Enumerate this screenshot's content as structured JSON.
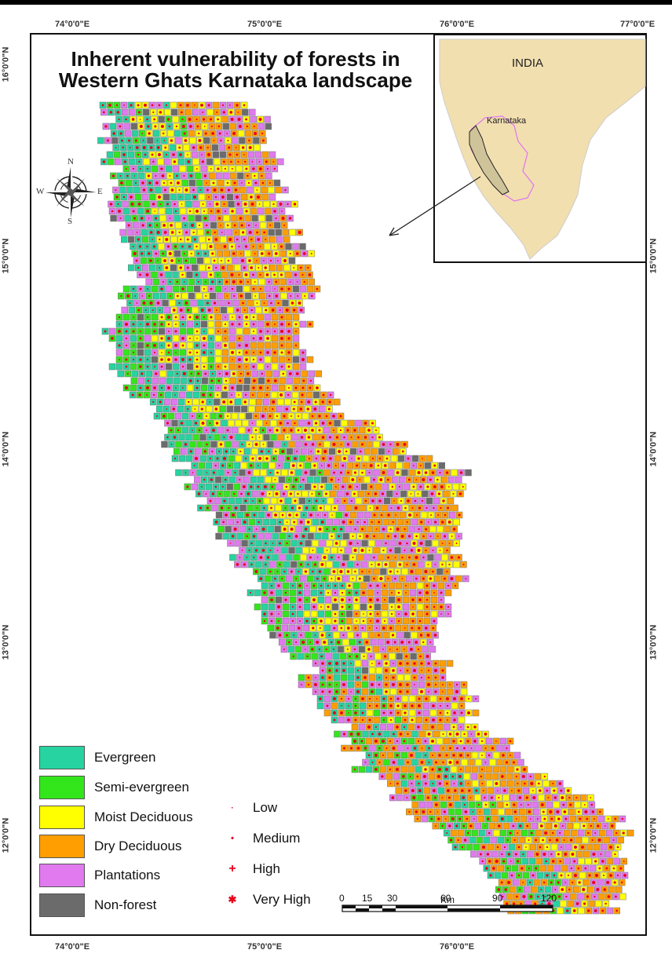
{
  "map": {
    "title_line1": "Inherent vulnerability of forests in",
    "title_line2": "Western Ghats Karnataka landscape"
  },
  "graticule": {
    "top": [
      "74°0'0\"E",
      "75°0'0\"E",
      "76°0'0\"E",
      "77°0'0\"E"
    ],
    "bottom": [
      "74°0'0\"E",
      "75°0'0\"E",
      "76°0'0\"E"
    ],
    "left": [
      "16°0'0\"N",
      "15°0'0\"N",
      "14°0'0\"N",
      "13°0'0\"N",
      "12°0'0\"N"
    ],
    "right": [
      "15°0'0\"N",
      "14°0'0\"N",
      "13°0'0\"N",
      "12°0'0\"N"
    ]
  },
  "inset": {
    "country_label": "INDIA",
    "state_label": "Karnataka"
  },
  "compass": {
    "n": "N",
    "s": "S",
    "e": "E",
    "w": "W"
  },
  "forest_legend": [
    {
      "label": "Evergreen",
      "color": "#27d3a0"
    },
    {
      "label": "Semi-evergreen",
      "color": "#33e61c"
    },
    {
      "label": "Moist Deciduous",
      "color": "#ffff00"
    },
    {
      "label": "Dry Deciduous",
      "color": "#ff9e00"
    },
    {
      "label": "Plantations",
      "color": "#e07aee"
    },
    {
      "label": "Non-forest",
      "color": "#6b6b6b"
    }
  ],
  "vulnerability_legend": [
    {
      "label": "Low",
      "symbol": "·"
    },
    {
      "label": "Medium",
      "symbol": "•"
    },
    {
      "label": "High",
      "symbol": "+"
    },
    {
      "label": "Very High",
      "symbol": "✱"
    }
  ],
  "scale_bar": {
    "unit": "Km",
    "ticks": [
      "0",
      "15",
      "30",
      "60",
      "90",
      "120"
    ]
  },
  "colors": {
    "marker": "#e8001d",
    "inset_land": "#f2dfb0",
    "inset_boundary": "#e07aee"
  }
}
